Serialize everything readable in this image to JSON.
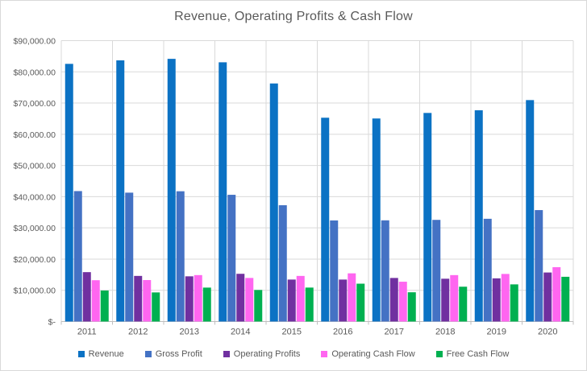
{
  "chart_data": {
    "type": "bar",
    "title": "Revenue, Operating Profits & Cash Flow",
    "categories": [
      "2011",
      "2012",
      "2013",
      "2014",
      "2015",
      "2016",
      "2017",
      "2018",
      "2019",
      "2020"
    ],
    "series": [
      {
        "name": "Revenue",
        "color": "#0B72C4",
        "values": [
          82559,
          83680,
          84167,
          83062,
          76279,
          65299,
          65058,
          66832,
          67684,
          70950
        ]
      },
      {
        "name": "Gross Profit",
        "color": "#4472C4",
        "values": [
          41791,
          41289,
          41739,
          40602,
          37258,
          32390,
          32420,
          32564,
          32916,
          35700
        ]
      },
      {
        "name": "Operating Profits",
        "color": "#7030A0",
        "values": [
          15818,
          14611,
          14481,
          15288,
          13441,
          13441,
          13955,
          13711,
          13832,
          15706
        ]
      },
      {
        "name": "Operating Cash Flow",
        "color": "#FF66F0",
        "values": [
          13231,
          13284,
          14873,
          13958,
          14608,
          15435,
          12753,
          14867,
          15242,
          17403
        ]
      },
      {
        "name": "Free Cash Flow",
        "color": "#00B050",
        "values": [
          9925,
          9320,
          10865,
          10110,
          10872,
          12121,
          9369,
          11150,
          11895,
          14330
        ]
      }
    ],
    "xlabel": "",
    "ylabel": "",
    "ylim": [
      0,
      90000
    ],
    "y_tick_labels": [
      "$-",
      "$10,000.00",
      "$20,000.00",
      "$30,000.00",
      "$40,000.00",
      "$50,000.00",
      "$60,000.00",
      "$70,000.00",
      "$80,000.00",
      "$90,000.00"
    ],
    "grid": {
      "horizontal": true,
      "vertical": true
    },
    "legend_position": "bottom",
    "colors": {
      "text": "#595959",
      "gridline": "#D9D9D9",
      "axis": "#BFBFBF",
      "background": "#FFFFFF",
      "border": "#D9D9D9"
    }
  }
}
